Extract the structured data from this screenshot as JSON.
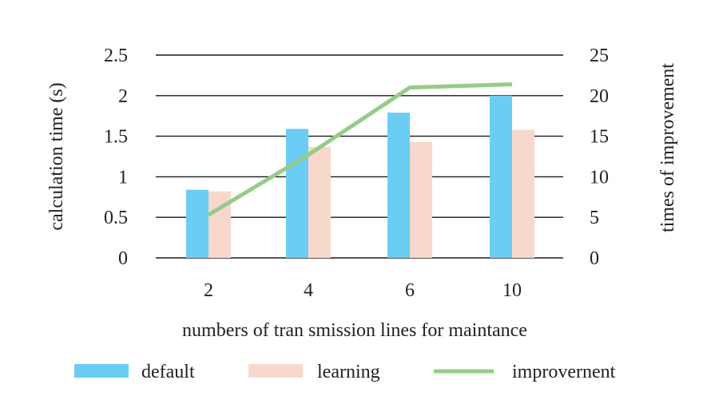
{
  "chart_data": {
    "type": "bar",
    "categories": [
      "2",
      "4",
      "6",
      "10"
    ],
    "series": [
      {
        "name": "default",
        "type": "bar",
        "axis": "left",
        "values": [
          0.84,
          1.59,
          1.79,
          2.0
        ],
        "color": "#6ccdf4"
      },
      {
        "name": "learning",
        "type": "bar",
        "axis": "left",
        "values": [
          0.82,
          1.37,
          1.43,
          1.58
        ],
        "color": "#f8d8cc"
      },
      {
        "name": "improvernent",
        "type": "line",
        "axis": "right",
        "values": [
          5.3,
          12.7,
          21.0,
          21.4
        ],
        "color": "#95cc87"
      }
    ],
    "xlabel": "numbers of tran smission lines for maintance",
    "ylabel": "calculation time (s)",
    "y2label": "times of improvement",
    "ylim": [
      0,
      2.5
    ],
    "y2lim": [
      0,
      25
    ],
    "yticks": [
      "0",
      "0.5",
      "1",
      "1.5",
      "2",
      "2.5"
    ],
    "y2ticks": [
      "0",
      "5",
      "10",
      "15",
      "20",
      "25"
    ],
    "grid": true,
    "legend": "bottom"
  }
}
